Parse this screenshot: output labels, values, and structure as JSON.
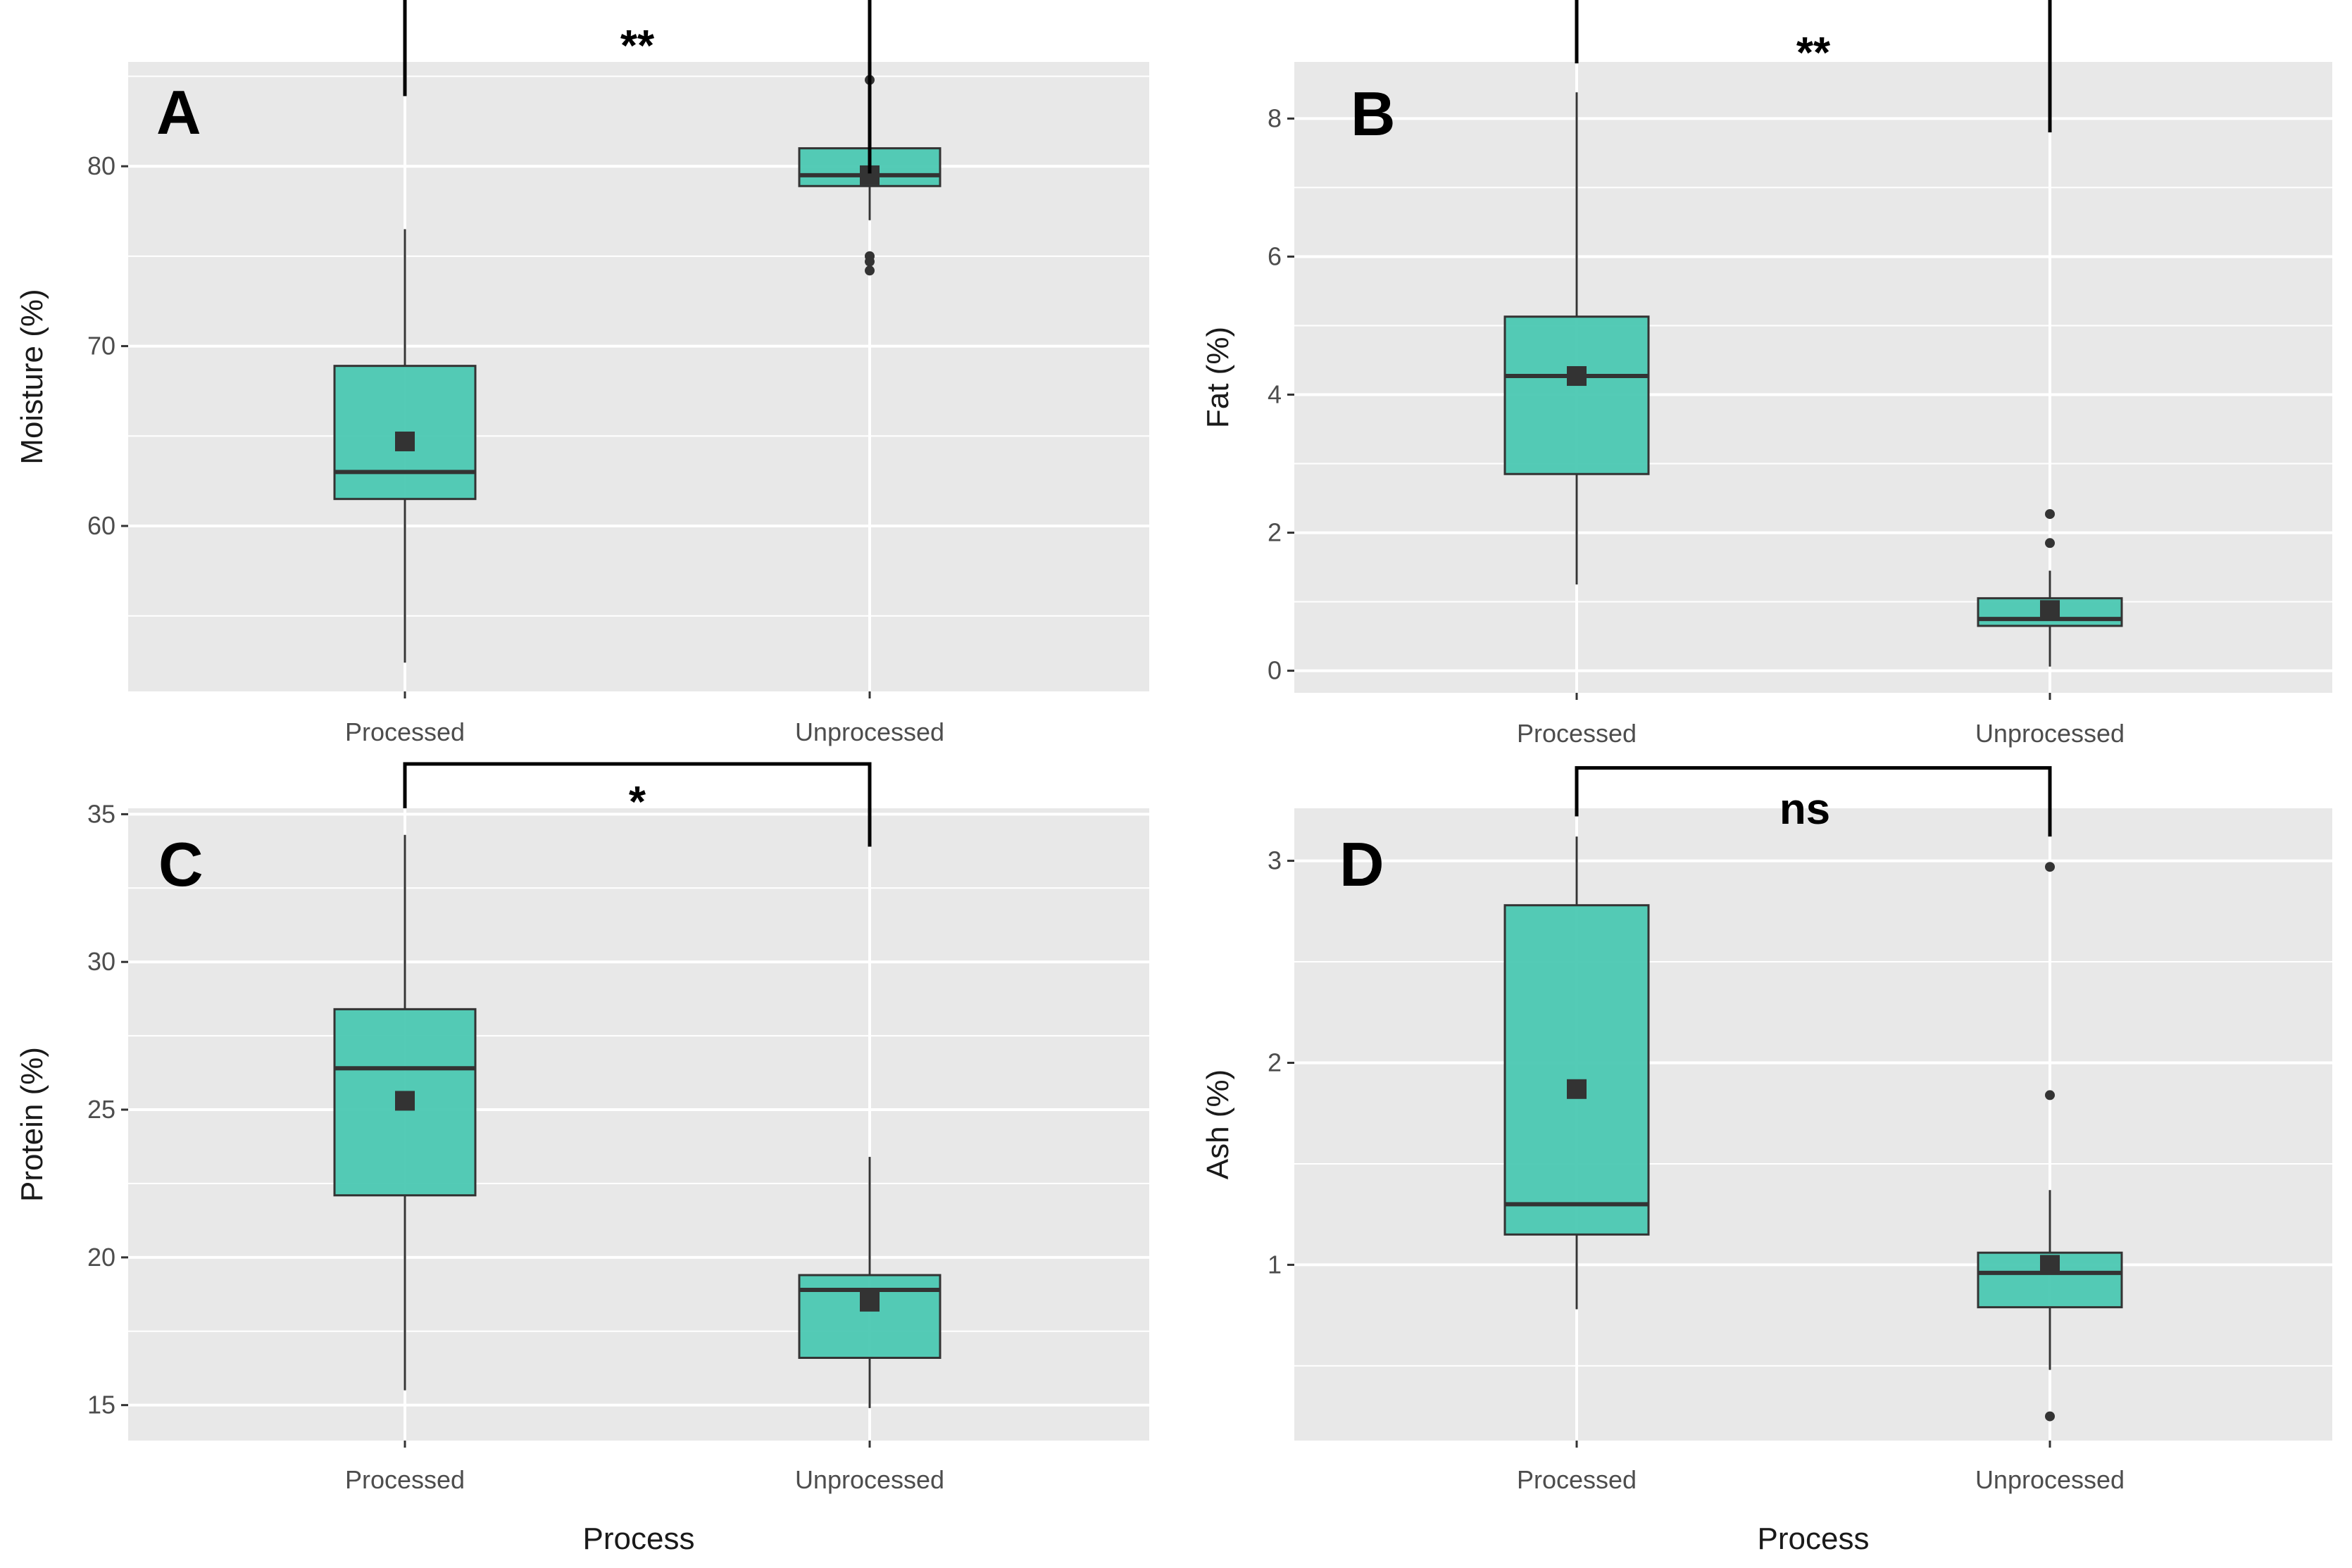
{
  "figure": {
    "x_axis_title": "Process",
    "box_fill": "#45c7b0",
    "panel_background": "#e8e8e8",
    "grid_color": "#ffffff",
    "line_color": "#333333",
    "bracket_color": "#000000"
  },
  "chart_data": [
    {
      "type": "box",
      "panel": "A",
      "title": "",
      "xlabel": "",
      "ylabel": "Moisture (%)",
      "categories": [
        "Processed",
        "Unprocessed"
      ],
      "ylim": [
        50.8,
        85.8
      ],
      "yticks": [
        60,
        70,
        80
      ],
      "boxes": [
        {
          "category": "Processed",
          "whisker_low": 52.4,
          "q1": 61.5,
          "median": 63.0,
          "q3": 68.9,
          "whisker_high": 76.5,
          "mean": 64.7,
          "outliers": []
        },
        {
          "category": "Unprocessed",
          "whisker_low": 77.0,
          "q1": 78.9,
          "median": 79.5,
          "q3": 81.0,
          "whisker_high": 82.8,
          "mean": 79.5,
          "outliers": [
            84.8,
            75.0,
            74.7,
            74.2
          ]
        }
      ],
      "significance": {
        "label": "**",
        "from": "Processed",
        "to": "Unprocessed",
        "bar_y": 94.7,
        "left_tick_end": 83.9,
        "right_tick_end": 79.6
      }
    },
    {
      "type": "box",
      "panel": "B",
      "title": "",
      "xlabel": "",
      "ylabel": "Fat (%)",
      "categories": [
        "Processed",
        "Unprocessed"
      ],
      "ylim": [
        -0.32,
        8.82
      ],
      "yticks": [
        0,
        2,
        4,
        6,
        8
      ],
      "boxes": [
        {
          "category": "Processed",
          "whisker_low": 1.25,
          "q1": 2.85,
          "median": 4.27,
          "q3": 5.13,
          "whisker_high": 8.38,
          "mean": 4.27,
          "outliers": []
        },
        {
          "category": "Unprocessed",
          "whisker_low": 0.06,
          "q1": 0.65,
          "median": 0.75,
          "q3": 1.05,
          "whisker_high": 1.45,
          "mean": 0.88,
          "outliers": [
            2.27,
            1.85
          ]
        }
      ],
      "significance": {
        "label": "**",
        "from": "Processed",
        "to": "Unprocessed",
        "bar_y": 11.1,
        "left_tick_end": 8.8,
        "right_tick_end": 7.8
      }
    },
    {
      "type": "box",
      "panel": "C",
      "title": "",
      "xlabel": "Process",
      "ylabel": "Protein (%)",
      "categories": [
        "Processed",
        "Unprocessed"
      ],
      "ylim": [
        13.8,
        35.2
      ],
      "yticks": [
        15,
        20,
        25,
        30,
        35
      ],
      "boxes": [
        {
          "category": "Processed",
          "whisker_low": 15.5,
          "q1": 22.1,
          "median": 26.4,
          "q3": 28.4,
          "whisker_high": 34.3,
          "mean": 25.3,
          "outliers": []
        },
        {
          "category": "Unprocessed",
          "whisker_low": 14.9,
          "q1": 16.6,
          "median": 18.9,
          "q3": 19.4,
          "whisker_high": 23.4,
          "mean": 18.5,
          "outliers": []
        }
      ],
      "significance": {
        "label": "*",
        "from": "Processed",
        "to": "Unprocessed",
        "bar_y": 36.7,
        "left_tick_end": 35.2,
        "right_tick_end": 33.9
      }
    },
    {
      "type": "box",
      "panel": "D",
      "title": "",
      "xlabel": "Process",
      "ylabel": "Ash (%)",
      "categories": [
        "Processed",
        "Unprocessed"
      ],
      "ylim": [
        0.13,
        3.26
      ],
      "yticks": [
        1,
        2,
        3
      ],
      "boxes": [
        {
          "category": "Processed",
          "whisker_low": 0.78,
          "q1": 1.15,
          "median": 1.3,
          "q3": 2.78,
          "whisker_high": 3.12,
          "mean": 1.87,
          "outliers": []
        },
        {
          "category": "Unprocessed",
          "whisker_low": 0.48,
          "q1": 0.79,
          "median": 0.96,
          "q3": 1.06,
          "whisker_high": 1.37,
          "mean": 1.0,
          "outliers": [
            2.97,
            1.84,
            0.25
          ]
        }
      ],
      "significance": {
        "label": "ns",
        "from": "Processed",
        "to": "Unprocessed",
        "bar_y": 3.46,
        "left_tick_end": 3.22,
        "right_tick_end": 3.12
      }
    }
  ]
}
